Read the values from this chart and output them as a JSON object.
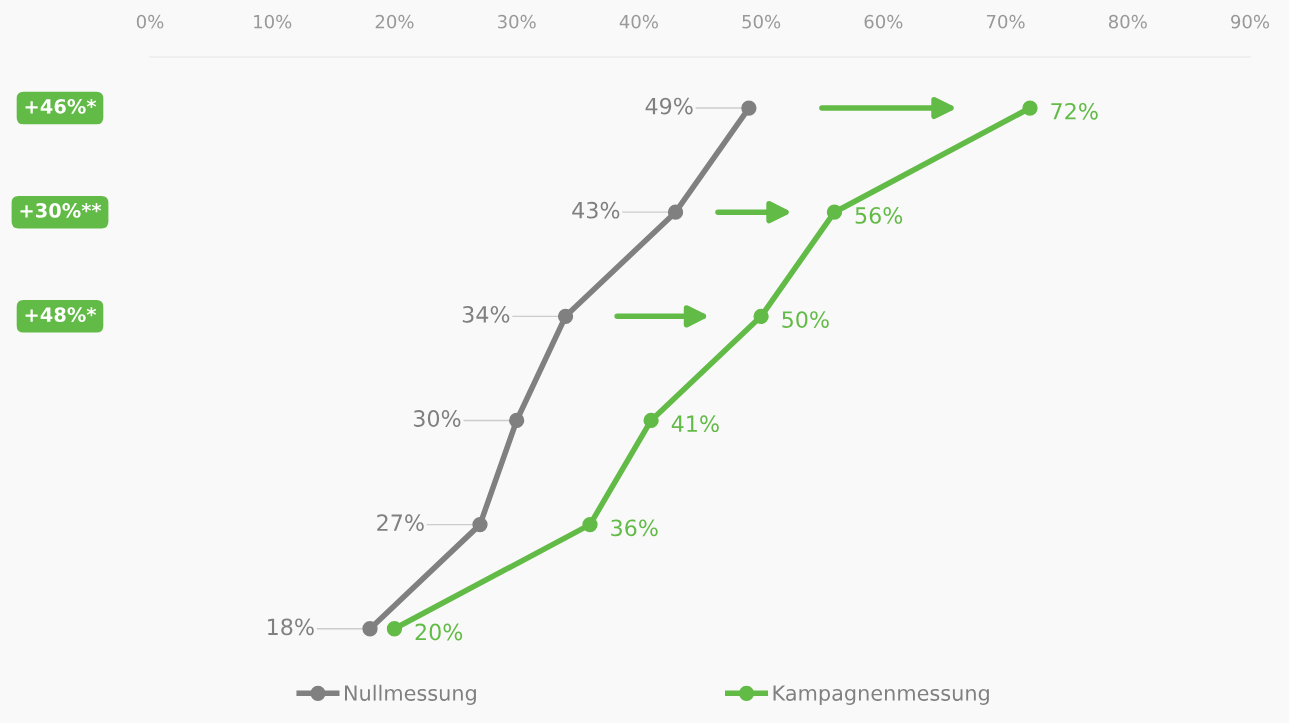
{
  "chart_data": {
    "type": "line",
    "orientation": "horizontal",
    "categories": [
      null,
      null,
      null,
      null,
      null,
      null
    ],
    "series": [
      {
        "name": "Nullmessung",
        "color": "#808080",
        "values": [
          49,
          43,
          34,
          30,
          27,
          18
        ],
        "value_labels": [
          "49%",
          "43%",
          "34%",
          "30%",
          "27%",
          "18%"
        ]
      },
      {
        "name": "Kampagnenmessung",
        "color": "#62bb46",
        "values": [
          72,
          56,
          50,
          41,
          36,
          20
        ],
        "value_labels": [
          "72%",
          "56%",
          "50%",
          "41%",
          "36%",
          "20%"
        ]
      }
    ],
    "xlim": [
      0,
      90
    ],
    "xticks": [
      {
        "value": 0,
        "label": "0%"
      },
      {
        "value": 10,
        "label": "10%"
      },
      {
        "value": 20,
        "label": "20%"
      },
      {
        "value": 30,
        "label": "30%"
      },
      {
        "value": 40,
        "label": "40%"
      },
      {
        "value": 50,
        "label": "50%"
      },
      {
        "value": 60,
        "label": "60%"
      },
      {
        "value": 70,
        "label": "70%"
      },
      {
        "value": 80,
        "label": "80%"
      },
      {
        "value": 90,
        "label": "90%"
      }
    ],
    "tick_labels": "x",
    "marker": "circle",
    "line_style": "solid",
    "legend": "bottom",
    "grid": false,
    "annotations": [
      "+46%*",
      "+30%**",
      "+48%*"
    ]
  }
}
